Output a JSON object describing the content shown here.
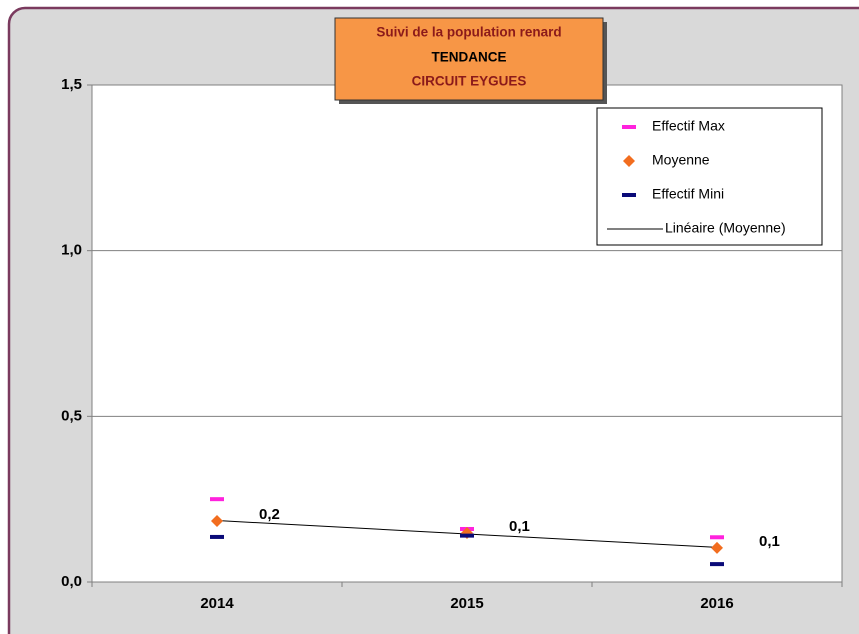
{
  "chart_data": {
    "type": "line",
    "title_lines": [
      "Suivi de la population renard",
      "TENDANCE",
      "CIRCUIT EYGUES"
    ],
    "categories": [
      "2014",
      "2015",
      "2016"
    ],
    "series": [
      {
        "name": "Effectif Max",
        "color": "#ff22dd",
        "marker": "dash",
        "values": [
          0.25,
          0.16,
          0.135
        ]
      },
      {
        "name": "Moyenne",
        "color": "#f26d1f",
        "marker": "diamond",
        "values": [
          0.184,
          0.148,
          0.103
        ],
        "value_labels": [
          "0,2",
          "0,1",
          "0,1"
        ]
      },
      {
        "name": "Effectif Mini",
        "color": "#0a0a78",
        "marker": "dash",
        "values": [
          0.136,
          0.14,
          0.054
        ]
      }
    ],
    "trendline": {
      "name": "Linéaire (Moyenne)",
      "of": 1,
      "color": "#000000"
    },
    "ylim": [
      0,
      1.5
    ],
    "yticks": [
      {
        "value": 0,
        "label": "0,0"
      },
      {
        "value": 0.5,
        "label": "0,5"
      },
      {
        "value": 1,
        "label": "1,0"
      },
      {
        "value": 1.5,
        "label": "1,5"
      }
    ],
    "grid": true,
    "legend": "top-right"
  }
}
